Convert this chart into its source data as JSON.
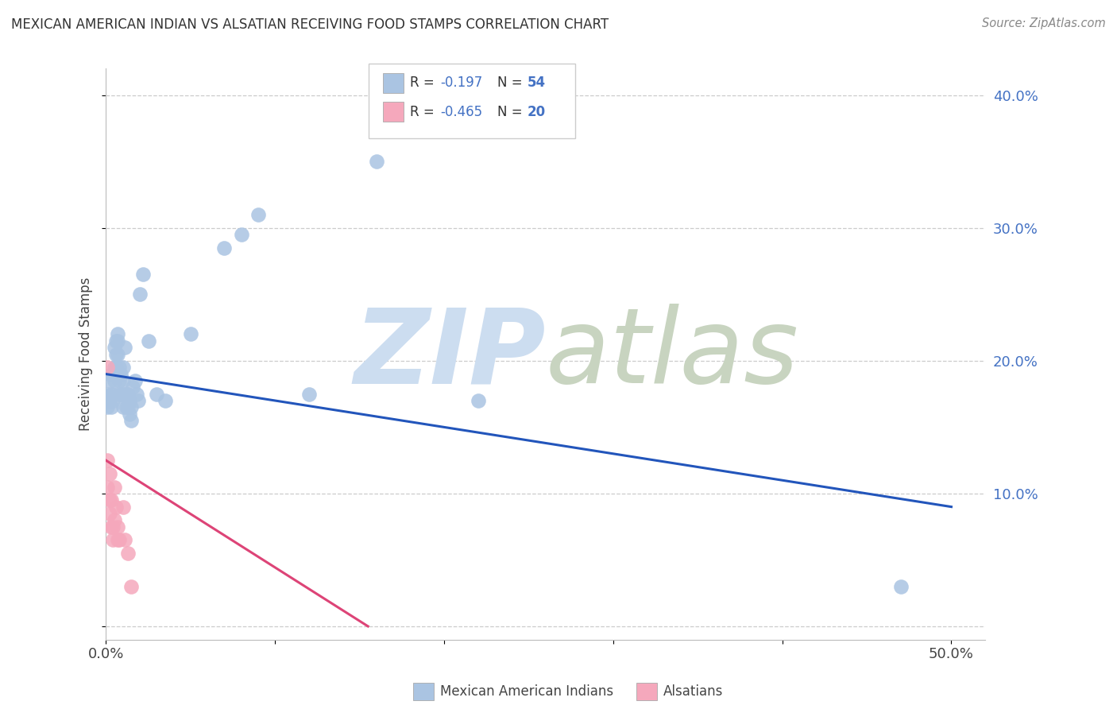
{
  "title": "MEXICAN AMERICAN INDIAN VS ALSATIAN RECEIVING FOOD STAMPS CORRELATION CHART",
  "source": "Source: ZipAtlas.com",
  "ylabel": "Receiving Food Stamps",
  "yticks": [
    0.0,
    0.1,
    0.2,
    0.3,
    0.4
  ],
  "ytick_labels": [
    "",
    "10.0%",
    "20.0%",
    "30.0%",
    "40.0%"
  ],
  "xticks": [
    0.0,
    0.1,
    0.2,
    0.3,
    0.4,
    0.5
  ],
  "xtick_labels": [
    "0.0%",
    "",
    "",
    "",
    "",
    "50.0%"
  ],
  "xlim": [
    0.0,
    0.52
  ],
  "ylim": [
    -0.01,
    0.42
  ],
  "legend_label1": "Mexican American Indians",
  "legend_label2": "Alsatians",
  "blue_color": "#aac4e2",
  "pink_color": "#f5a8bc",
  "blue_line_color": "#2255bb",
  "pink_line_color": "#dd4477",
  "blue_x": [
    0.001,
    0.001,
    0.002,
    0.002,
    0.003,
    0.003,
    0.003,
    0.004,
    0.004,
    0.005,
    0.005,
    0.005,
    0.006,
    0.006,
    0.006,
    0.007,
    0.007,
    0.007,
    0.007,
    0.008,
    0.008,
    0.008,
    0.009,
    0.009,
    0.01,
    0.01,
    0.01,
    0.01,
    0.011,
    0.012,
    0.012,
    0.013,
    0.013,
    0.014,
    0.014,
    0.015,
    0.015,
    0.016,
    0.017,
    0.018,
    0.019,
    0.02,
    0.022,
    0.025,
    0.03,
    0.035,
    0.05,
    0.07,
    0.08,
    0.09,
    0.12,
    0.16,
    0.22,
    0.47
  ],
  "blue_y": [
    0.175,
    0.165,
    0.185,
    0.17,
    0.19,
    0.175,
    0.165,
    0.175,
    0.17,
    0.21,
    0.195,
    0.185,
    0.215,
    0.205,
    0.195,
    0.22,
    0.215,
    0.205,
    0.19,
    0.195,
    0.185,
    0.175,
    0.19,
    0.175,
    0.195,
    0.185,
    0.175,
    0.165,
    0.21,
    0.175,
    0.165,
    0.175,
    0.165,
    0.17,
    0.16,
    0.165,
    0.155,
    0.18,
    0.185,
    0.175,
    0.17,
    0.25,
    0.265,
    0.215,
    0.175,
    0.17,
    0.22,
    0.285,
    0.295,
    0.31,
    0.175,
    0.35,
    0.17,
    0.03
  ],
  "pink_x": [
    0.001,
    0.001,
    0.001,
    0.002,
    0.002,
    0.002,
    0.003,
    0.003,
    0.004,
    0.004,
    0.005,
    0.005,
    0.006,
    0.007,
    0.007,
    0.008,
    0.01,
    0.011,
    0.013,
    0.015
  ],
  "pink_y": [
    0.195,
    0.125,
    0.105,
    0.115,
    0.095,
    0.085,
    0.095,
    0.075,
    0.075,
    0.065,
    0.105,
    0.08,
    0.09,
    0.075,
    0.065,
    0.065,
    0.09,
    0.065,
    0.055,
    0.03
  ],
  "blue_trend_x": [
    0.0,
    0.5
  ],
  "blue_trend_y": [
    0.19,
    0.09
  ],
  "pink_trend_x": [
    0.0,
    0.155
  ],
  "pink_trend_y": [
    0.125,
    0.0
  ]
}
